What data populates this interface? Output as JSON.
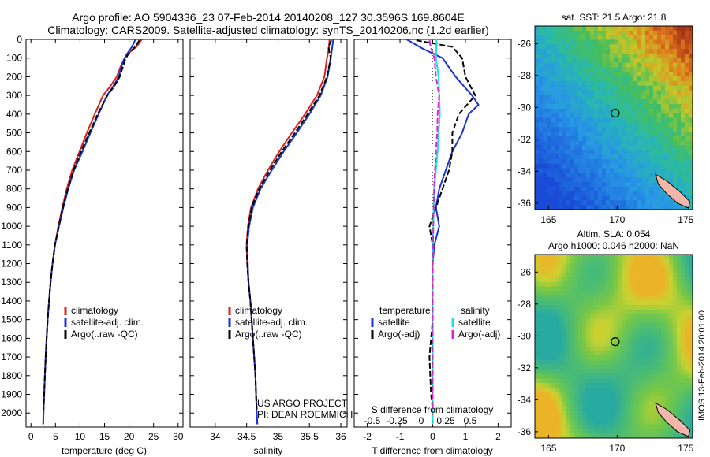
{
  "header": {
    "line1": "Argo profile: AO 5904336_23 07-Feb-2014 20140208_127 30.3596S 169.8604E",
    "line2": "Climatology: CARS2009. Satellite-adjusted climatology: synTS_20140206.nc (1.2d earlier)"
  },
  "side_label": "IMOS 13-Feb-2014 20:01:00",
  "project_note": {
    "line1": "US ARGO PROJECT",
    "line2": "PI: DEAN ROEMMICH"
  },
  "colors": {
    "climatology": "#e0201e",
    "satellite": "#1a33d6",
    "argo": "#000000",
    "cyan": "#22dde0",
    "magenta": "#e020e0"
  },
  "chart_data": [
    {
      "type": "line",
      "id": "temperature",
      "xlabel": "temperature (deg C)",
      "xlim": [
        -1,
        31
      ],
      "ylim": [
        0,
        2075
      ],
      "xticks": [
        0,
        5,
        10,
        15,
        20,
        25,
        30
      ],
      "yticks": [
        0,
        100,
        200,
        300,
        400,
        500,
        600,
        700,
        800,
        900,
        1000,
        1100,
        1200,
        1300,
        1400,
        1500,
        1600,
        1700,
        1800,
        1900,
        2000
      ],
      "legend": [
        "climatology",
        "satellite-adj. clim.",
        "Argo(..raw -QC)"
      ],
      "series": [
        {
          "name": "climatology",
          "color": "climatology",
          "points": [
            [
              22.6,
              0
            ],
            [
              21.5,
              40
            ],
            [
              19.6,
              80
            ],
            [
              18.9,
              110
            ],
            [
              18.2,
              150
            ],
            [
              17.5,
              200
            ],
            [
              16.2,
              250
            ],
            [
              14.7,
              300
            ],
            [
              13.0,
              400
            ],
            [
              11.4,
              500
            ],
            [
              9.9,
              600
            ],
            [
              8.4,
              700
            ],
            [
              7.3,
              800
            ],
            [
              6.4,
              900
            ],
            [
              5.6,
              1000
            ],
            [
              4.9,
              1100
            ],
            [
              4.4,
              1200
            ],
            [
              4.0,
              1300
            ],
            [
              3.7,
              1400
            ],
            [
              3.4,
              1500
            ],
            [
              3.2,
              1600
            ],
            [
              3.0,
              1700
            ],
            [
              2.85,
              1800
            ],
            [
              2.7,
              1900
            ],
            [
              2.55,
              2000
            ],
            [
              2.5,
              2060
            ]
          ]
        },
        {
          "name": "satellite-adj. clim.",
          "color": "satellite",
          "points": [
            [
              21.3,
              0
            ],
            [
              20.6,
              40
            ],
            [
              19.5,
              80
            ],
            [
              18.9,
              110
            ],
            [
              18.4,
              150
            ],
            [
              17.9,
              200
            ],
            [
              16.8,
              250
            ],
            [
              15.5,
              300
            ],
            [
              13.8,
              400
            ],
            [
              12.1,
              500
            ],
            [
              10.5,
              600
            ],
            [
              8.8,
              700
            ],
            [
              7.6,
              800
            ],
            [
              6.6,
              900
            ],
            [
              5.7,
              1000
            ],
            [
              4.9,
              1100
            ],
            [
              4.4,
              1200
            ],
            [
              4.0,
              1300
            ],
            [
              3.7,
              1400
            ],
            [
              3.4,
              1500
            ],
            [
              3.2,
              1600
            ],
            [
              3.0,
              1700
            ],
            [
              2.85,
              1800
            ],
            [
              2.7,
              1900
            ],
            [
              2.55,
              2000
            ],
            [
              2.5,
              2060
            ]
          ]
        },
        {
          "name": "Argo(..raw -QC)",
          "color": "argo",
          "dashed": true,
          "points": [
            [
              22.1,
              5
            ],
            [
              21.2,
              40
            ],
            [
              19.8,
              80
            ],
            [
              19.2,
              110
            ],
            [
              18.7,
              150
            ],
            [
              18.1,
              200
            ],
            [
              17.0,
              250
            ],
            [
              15.6,
              300
            ],
            [
              13.6,
              400
            ],
            [
              11.9,
              500
            ],
            [
              10.2,
              600
            ],
            [
              8.7,
              700
            ],
            [
              7.5,
              800
            ],
            [
              6.5,
              900
            ],
            [
              5.7,
              1000
            ],
            [
              4.9,
              1100
            ],
            [
              4.4,
              1200
            ],
            [
              4.0,
              1300
            ],
            [
              3.7,
              1400
            ],
            [
              3.4,
              1500
            ],
            [
              3.2,
              1600
            ],
            [
              3.0,
              1700
            ],
            [
              2.85,
              1800
            ],
            [
              2.7,
              1900
            ],
            [
              2.55,
              1980
            ]
          ]
        }
      ]
    },
    {
      "type": "line",
      "id": "salinity",
      "xlabel": "salinity",
      "xlim": [
        33.6,
        36.1
      ],
      "ylim": [
        0,
        2075
      ],
      "xticks": [
        34,
        34.5,
        35,
        35.5,
        36
      ],
      "legend": [
        "climatology",
        "satellite-adj. clim.",
        "Argo(..raw -QC)"
      ],
      "series": [
        {
          "name": "climatology",
          "color": "climatology",
          "points": [
            [
              35.82,
              0
            ],
            [
              35.81,
              50
            ],
            [
              35.78,
              100
            ],
            [
              35.74,
              200
            ],
            [
              35.62,
              300
            ],
            [
              35.43,
              400
            ],
            [
              35.22,
              500
            ],
            [
              35.02,
              600
            ],
            [
              34.84,
              700
            ],
            [
              34.68,
              800
            ],
            [
              34.57,
              900
            ],
            [
              34.52,
              1000
            ],
            [
              34.5,
              1100
            ],
            [
              34.51,
              1200
            ],
            [
              34.53,
              1300
            ],
            [
              34.56,
              1400
            ],
            [
              34.58,
              1500
            ],
            [
              34.6,
              1600
            ],
            [
              34.62,
              1700
            ],
            [
              34.64,
              1800
            ],
            [
              34.65,
              1900
            ],
            [
              34.66,
              2000
            ],
            [
              34.67,
              2060
            ]
          ]
        },
        {
          "name": "satellite-adj. clim.",
          "color": "satellite",
          "points": [
            [
              35.88,
              0
            ],
            [
              35.86,
              50
            ],
            [
              35.84,
              100
            ],
            [
              35.79,
              200
            ],
            [
              35.68,
              300
            ],
            [
              35.5,
              400
            ],
            [
              35.3,
              500
            ],
            [
              35.09,
              600
            ],
            [
              34.9,
              700
            ],
            [
              34.72,
              800
            ],
            [
              34.6,
              900
            ],
            [
              34.54,
              1000
            ],
            [
              34.51,
              1100
            ],
            [
              34.52,
              1200
            ],
            [
              34.53,
              1300
            ],
            [
              34.56,
              1400
            ],
            [
              34.58,
              1500
            ],
            [
              34.6,
              1600
            ],
            [
              34.62,
              1700
            ],
            [
              34.64,
              1800
            ],
            [
              34.65,
              1900
            ],
            [
              34.66,
              2000
            ],
            [
              34.67,
              2060
            ]
          ]
        },
        {
          "name": "Argo(..raw -QC)",
          "color": "argo",
          "dashed": true,
          "points": [
            [
              35.85,
              5
            ],
            [
              35.8,
              40
            ],
            [
              35.84,
              100
            ],
            [
              35.78,
              200
            ],
            [
              35.66,
              300
            ],
            [
              35.47,
              400
            ],
            [
              35.27,
              500
            ],
            [
              35.06,
              600
            ],
            [
              34.87,
              700
            ],
            [
              34.7,
              800
            ],
            [
              34.58,
              900
            ],
            [
              34.53,
              1000
            ],
            [
              34.5,
              1100
            ],
            [
              34.51,
              1200
            ],
            [
              34.53,
              1300
            ],
            [
              34.56,
              1400
            ],
            [
              34.58,
              1500
            ],
            [
              34.6,
              1600
            ],
            [
              34.62,
              1700
            ],
            [
              34.64,
              1800
            ],
            [
              34.65,
              1900
            ],
            [
              34.66,
              1980
            ]
          ]
        }
      ]
    },
    {
      "type": "line",
      "id": "difference",
      "xlabel": "T difference from climatology",
      "xlabel_top": "S difference from climatology",
      "xlim": [
        -2.4,
        2.4
      ],
      "ylim": [
        0,
        2075
      ],
      "xticks": [
        -2,
        -1,
        0,
        1,
        2
      ],
      "xticks_top": [
        "-0.5",
        "-0.25",
        "0",
        "0.25",
        "0.5"
      ],
      "legend_left_title": "temperature",
      "legend_right_title": "salinity",
      "legend": [
        "satellite",
        "Argo(-adj)",
        "satellite",
        "Argo(-adj)"
      ],
      "series": [
        {
          "name": "T satellite",
          "color": "satellite",
          "points": [
            [
              -0.8,
              0
            ],
            [
              -0.3,
              50
            ],
            [
              0.3,
              100
            ],
            [
              0.7,
              200
            ],
            [
              1.2,
              300
            ],
            [
              1.4,
              350
            ],
            [
              1.1,
              400
            ],
            [
              0.9,
              500
            ],
            [
              0.6,
              600
            ],
            [
              0.4,
              700
            ],
            [
              0.2,
              800
            ],
            [
              0.1,
              900
            ],
            [
              0.2,
              1000
            ],
            [
              0.05,
              1100
            ],
            [
              0.0,
              1200
            ],
            [
              0.0,
              1300
            ],
            [
              0.0,
              1500
            ],
            [
              0.0,
              1800
            ],
            [
              0.0,
              2060
            ]
          ]
        },
        {
          "name": "T Argo(-adj)",
          "color": "argo",
          "dashed": true,
          "points": [
            [
              -0.5,
              5
            ],
            [
              0.6,
              40
            ],
            [
              0.9,
              100
            ],
            [
              1.0,
              200
            ],
            [
              1.3,
              300
            ],
            [
              0.8,
              400
            ],
            [
              0.7,
              450
            ],
            [
              0.6,
              500
            ],
            [
              0.6,
              600
            ],
            [
              0.5,
              700
            ],
            [
              0.3,
              800
            ],
            [
              0.1,
              900
            ],
            [
              -0.1,
              1000
            ],
            [
              0.0,
              1100
            ],
            [
              0.0,
              1300
            ],
            [
              0.0,
              1500
            ],
            [
              -0.1,
              1700
            ],
            [
              -0.05,
              1900
            ],
            [
              0.0,
              1980
            ]
          ]
        },
        {
          "name": "S satellite",
          "color": "cyan",
          "points": [
            [
              0.12,
              0
            ],
            [
              0.1,
              100
            ],
            [
              0.18,
              200
            ],
            [
              0.2,
              300
            ],
            [
              0.22,
              400
            ],
            [
              0.18,
              500
            ],
            [
              0.15,
              600
            ],
            [
              0.1,
              700
            ],
            [
              0.05,
              800
            ],
            [
              0.03,
              900
            ],
            [
              0.02,
              1000
            ],
            [
              0.0,
              1200
            ],
            [
              0.0,
              1500
            ],
            [
              0.0,
              2060
            ]
          ]
        },
        {
          "name": "S Argo(-adj)",
          "color": "magenta",
          "dashed": true,
          "points": [
            [
              -0.1,
              5
            ],
            [
              -0.06,
              40
            ],
            [
              0.05,
              100
            ],
            [
              0.1,
              200
            ],
            [
              0.2,
              300
            ],
            [
              0.15,
              400
            ],
            [
              0.14,
              500
            ],
            [
              0.1,
              600
            ],
            [
              0.07,
              700
            ],
            [
              0.04,
              800
            ],
            [
              0.03,
              900
            ],
            [
              0.02,
              1000
            ],
            [
              0.01,
              1100
            ],
            [
              0.0,
              1300
            ],
            [
              0.0,
              1500
            ],
            [
              0.0,
              1980
            ]
          ]
        }
      ]
    },
    {
      "type": "heatmap",
      "id": "sst-map",
      "title": "sat. SST: 21.5 Argo: 21.8",
      "xlim": [
        164,
        175.5
      ],
      "ylim": [
        -36.4,
        -24.9
      ],
      "xticks": [
        165,
        170,
        175
      ],
      "yticks": [
        -26,
        -28,
        -30,
        -32,
        -34,
        -36
      ],
      "marker": [
        169.86,
        -30.36
      ]
    },
    {
      "type": "heatmap",
      "id": "sla-map",
      "title_line1": "Altim. SLA: 0.054",
      "title_line2": "Argo h1000: 0.046 h2000: NaN",
      "xlim": [
        164,
        175.5
      ],
      "ylim": [
        -36.4,
        -24.9
      ],
      "xticks": [
        165,
        170,
        175
      ],
      "yticks": [
        -26,
        -28,
        -30,
        -32,
        -34,
        -36
      ],
      "marker": [
        169.86,
        -30.36
      ]
    }
  ]
}
